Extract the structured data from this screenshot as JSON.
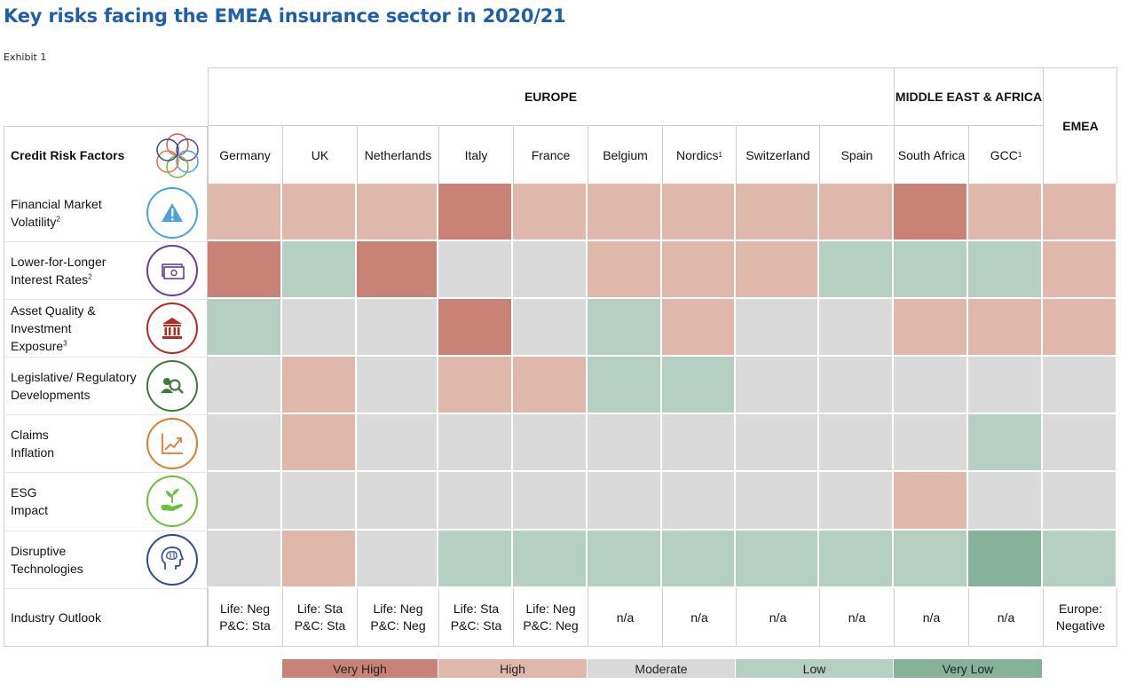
{
  "title": "Key risks facing the EMEA insurance sector in 2020/21",
  "exhibit": "Exhibit 1",
  "chart_data": {
    "type": "table",
    "title": "Key risks facing the EMEA insurance sector in 2020/21",
    "row_header": "Credit Risk Factors",
    "regions": [
      {
        "label": "EUROPE",
        "span": 9
      },
      {
        "label": "MIDDLE EAST & AFRICA",
        "span": 2
      },
      {
        "label": "EMEA",
        "span": 1
      }
    ],
    "columns": [
      {
        "label": "Germany",
        "sup": ""
      },
      {
        "label": "UK",
        "sup": ""
      },
      {
        "label": "Netherlands",
        "sup": ""
      },
      {
        "label": "Italy",
        "sup": ""
      },
      {
        "label": "France",
        "sup": ""
      },
      {
        "label": "Belgium",
        "sup": ""
      },
      {
        "label": "Nordics",
        "sup": "1"
      },
      {
        "label": "Switzerland",
        "sup": ""
      },
      {
        "label": "Spain",
        "sup": ""
      },
      {
        "label": "South Africa",
        "sup": ""
      },
      {
        "label": "GCC",
        "sup": "1"
      },
      {
        "label": "",
        "sup": ""
      }
    ],
    "risk_factors": [
      {
        "lines": [
          "Financial Market",
          "Volatility"
        ],
        "sup": "2",
        "icon": "warning-icon",
        "icon_color": "#4aa3df",
        "levels": [
          "H",
          "H",
          "H",
          "VH",
          "H",
          "H",
          "H",
          "H",
          "H",
          "VH",
          "H",
          "H"
        ]
      },
      {
        "lines": [
          "Lower-for-Longer",
          "Interest Rates"
        ],
        "sup": "2",
        "icon": "banknote-icon",
        "icon_color": "#6a3d9a",
        "levels": [
          "VH",
          "L",
          "VH",
          "M",
          "M",
          "H",
          "H",
          "H",
          "L",
          "L",
          "L",
          "H"
        ]
      },
      {
        "lines": [
          "Asset Quality &",
          "Investment",
          "Exposure"
        ],
        "sup": "3",
        "icon": "bank-building-icon",
        "icon_color": "#b52a1f",
        "levels": [
          "L",
          "M",
          "M",
          "VH",
          "M",
          "L",
          "H",
          "M",
          "M",
          "H",
          "H",
          "H"
        ]
      },
      {
        "lines": [
          "Legislative/ Regulatory",
          "Developments"
        ],
        "sup": "",
        "icon": "people-magnifier-icon",
        "icon_color": "#3f7a3a",
        "levels": [
          "M",
          "H",
          "M",
          "H",
          "H",
          "L",
          "L",
          "M",
          "M",
          "M",
          "M",
          "M"
        ]
      },
      {
        "lines": [
          "Claims",
          "Inflation"
        ],
        "sup": "",
        "icon": "rising-chart-icon",
        "icon_color": "#e07a2e",
        "levels": [
          "M",
          "H",
          "M",
          "M",
          "M",
          "M",
          "M",
          "M",
          "M",
          "M",
          "L",
          "M"
        ]
      },
      {
        "lines": [
          "ESG",
          "Impact"
        ],
        "sup": "",
        "icon": "hand-plant-icon",
        "icon_color": "#6abf3c",
        "levels": [
          "M",
          "M",
          "M",
          "M",
          "M",
          "M",
          "M",
          "M",
          "M",
          "H",
          "M",
          "M"
        ]
      },
      {
        "lines": [
          "Disruptive",
          "Technologies"
        ],
        "sup": "",
        "icon": "brain-head-icon",
        "icon_color": "#2b4a9a",
        "levels": [
          "M",
          "H",
          "M",
          "L",
          "L",
          "L",
          "L",
          "L",
          "L",
          "L",
          "VL",
          "L"
        ]
      }
    ],
    "outlook": {
      "label": "Industry Outlook",
      "values": [
        [
          "Life: Neg",
          "P&C: Sta"
        ],
        [
          "Life: Sta",
          "P&C: Sta"
        ],
        [
          "Life: Neg",
          "P&C: Neg"
        ],
        [
          "Life: Sta",
          "P&C: Sta"
        ],
        [
          "Life: Neg",
          "P&C: Neg"
        ],
        [
          "n/a"
        ],
        [
          "n/a"
        ],
        [
          "n/a"
        ],
        [
          "n/a"
        ],
        [
          "n/a"
        ],
        [
          "n/a"
        ],
        [
          "Europe:",
          "Negative"
        ]
      ]
    },
    "legend": [
      {
        "key": "VH",
        "label": "Very High",
        "color": "#c98276"
      },
      {
        "key": "H",
        "label": "High",
        "color": "#e0b8ab"
      },
      {
        "key": "M",
        "label": "Moderate",
        "color": "#d9d9d9"
      },
      {
        "key": "L",
        "label": "Low",
        "color": "#b5d0c2"
      },
      {
        "key": "VL",
        "label": "Very Low",
        "color": "#86b29c"
      }
    ],
    "colors": {
      "grid_line": "#ffffff",
      "frame": "#cfcfcf",
      "title": "#1f5fa8"
    }
  }
}
